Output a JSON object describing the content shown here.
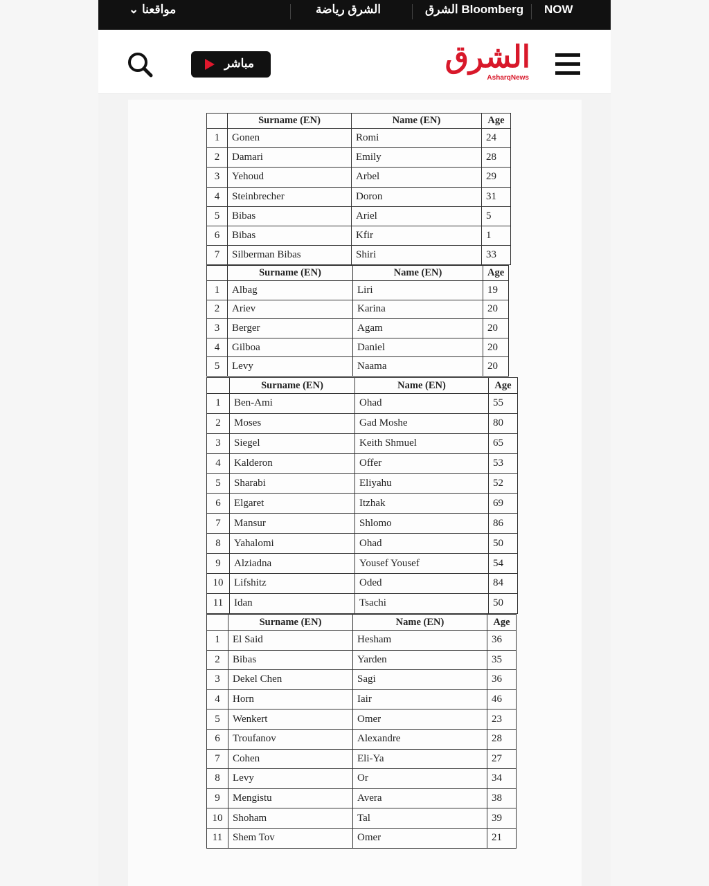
{
  "topbar": {
    "now": "NOW",
    "asharq_bloomberg": "الشرق Bloomberg",
    "asharq_sports": "الشرق رياضة",
    "our_sites": "مواقعنا"
  },
  "header": {
    "live_label": "مباشر",
    "logo_ar": "الشرق",
    "logo_en": "AsharqNews"
  },
  "colors": {
    "brand": "#d8182a",
    "topbar": "#111111"
  },
  "tables": [
    {
      "headers": [
        "",
        "Surname (EN)",
        "Name (EN)",
        "Age"
      ],
      "rows": [
        [
          "1",
          "Gonen",
          "Romi",
          "24"
        ],
        [
          "2",
          "Damari",
          "Emily",
          "28"
        ],
        [
          "3",
          "Yehoud",
          "Arbel",
          "29"
        ],
        [
          "4",
          "Steinbrecher",
          "Doron",
          "31"
        ],
        [
          "5",
          "Bibas",
          "Ariel",
          "5"
        ],
        [
          "6",
          "Bibas",
          "Kfir",
          "1"
        ],
        [
          "7",
          "Silberman Bibas",
          "Shiri",
          "33"
        ]
      ]
    },
    {
      "headers": [
        "",
        "Surname (EN)",
        "Name (EN)",
        "Age"
      ],
      "rows": [
        [
          "1",
          "Albag",
          "Liri",
          "19"
        ],
        [
          "2",
          "Ariev",
          "Karina",
          "20"
        ],
        [
          "3",
          "Berger",
          "Agam",
          "20"
        ],
        [
          "4",
          "Gilboa",
          "Daniel",
          "20"
        ],
        [
          "5",
          "Levy",
          "Naama",
          "20"
        ]
      ]
    },
    {
      "headers": [
        "",
        "Surname (EN)",
        "Name (EN)",
        "Age"
      ],
      "rows": [
        [
          "1",
          "Ben-Ami",
          "Ohad",
          "55"
        ],
        [
          "2",
          "Moses",
          "Gad Moshe",
          "80"
        ],
        [
          "3",
          "Siegel",
          "Keith Shmuel",
          "65"
        ],
        [
          "4",
          "Kalderon",
          "Offer",
          "53"
        ],
        [
          "5",
          "Sharabi",
          "Eliyahu",
          "52"
        ],
        [
          "6",
          "Elgaret",
          "Itzhak",
          "69"
        ],
        [
          "7",
          "Mansur",
          "Shlomo",
          "86"
        ],
        [
          "8",
          "Yahalomi",
          "Ohad",
          "50"
        ],
        [
          "9",
          "Alziadna",
          "Yousef Yousef",
          "54"
        ],
        [
          "10",
          "Lifshitz",
          "Oded",
          "84"
        ],
        [
          "11",
          "Idan",
          "Tsachi",
          "50"
        ]
      ]
    },
    {
      "headers": [
        "",
        "Surname (EN)",
        "Name (EN)",
        "Age"
      ],
      "rows": [
        [
          "1",
          "El Said",
          "Hesham",
          "36"
        ],
        [
          "2",
          "Bibas",
          "Yarden",
          "35"
        ],
        [
          "3",
          "Dekel Chen",
          "Sagi",
          "36"
        ],
        [
          "4",
          "Horn",
          "Iair",
          "46"
        ],
        [
          "5",
          "Wenkert",
          "Omer",
          "23"
        ],
        [
          "6",
          "Troufanov",
          "Alexandre",
          "28"
        ],
        [
          "7",
          "Cohen",
          "Eli-Ya",
          "27"
        ],
        [
          "8",
          "Levy",
          "Or",
          "34"
        ],
        [
          "9",
          "Mengistu",
          "Avera",
          "38"
        ],
        [
          "10",
          "Shoham",
          "Tal",
          "39"
        ],
        [
          "11",
          "Shem Tov",
          "Omer",
          "21"
        ]
      ]
    }
  ]
}
